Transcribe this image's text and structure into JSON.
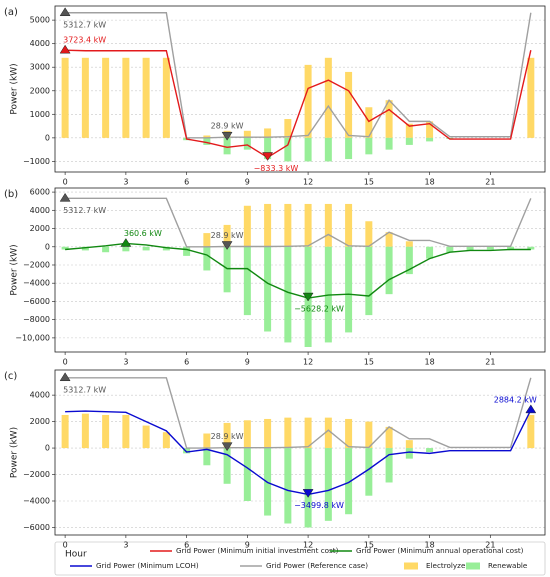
{
  "chart_data": [
    {
      "type": "combo",
      "panel_label": "(a)",
      "ylabel": "Power (kW)",
      "x": [
        0,
        1,
        2,
        3,
        4,
        5,
        6,
        7,
        8,
        9,
        10,
        11,
        12,
        13,
        14,
        15,
        16,
        17,
        18,
        19,
        20,
        21,
        22,
        23
      ],
      "xlim": [
        -0.5,
        23.7
      ],
      "xticks": [
        0,
        3,
        6,
        9,
        12,
        15,
        18,
        21
      ],
      "ylim": [
        -1450,
        5600
      ],
      "yticks": [
        {
          "value": -1000,
          "label": "−1000"
        },
        0,
        1000,
        2000,
        3000,
        4000,
        5000
      ],
      "grid": true,
      "series": [
        {
          "name": "Electrolyzer",
          "kind": "bar",
          "color": "#ffd966",
          "values": [
            3400,
            3400,
            3400,
            3400,
            3400,
            3400,
            0,
            100,
            300,
            300,
            400,
            800,
            3100,
            3400,
            2800,
            1300,
            1600,
            600,
            700,
            0,
            0,
            0,
            0,
            3400
          ]
        },
        {
          "name": "Renewable",
          "kind": "bar",
          "color": "#98ee98",
          "values": [
            0,
            0,
            0,
            0,
            0,
            0,
            -100,
            -300,
            -700,
            -500,
            -900,
            -1000,
            -1000,
            -1000,
            -900,
            -700,
            -500,
            -300,
            -150,
            -50,
            0,
            0,
            0,
            0
          ]
        },
        {
          "name": "Grid Power (Reference case)",
          "kind": "line",
          "color": "#a0a0a0",
          "values": [
            5312.7,
            5312.7,
            5312.7,
            5312.7,
            5312.7,
            5312.7,
            0,
            0,
            28.9,
            30,
            30,
            50,
            100,
            1350,
            100,
            50,
            1600,
            700,
            700,
            50,
            50,
            50,
            50,
            5312.7
          ]
        },
        {
          "name": "Grid Power (Minimum initial investment cost)",
          "kind": "line",
          "color": "#e31a1c",
          "values": [
            3723.4,
            3700,
            3700,
            3700,
            3700,
            3700,
            -50,
            -200,
            -400,
            -300,
            -833.3,
            -300,
            2100,
            2450,
            2000,
            700,
            1200,
            500,
            600,
            -50,
            -50,
            -50,
            -50,
            3723.4
          ]
        }
      ],
      "annotations": [
        {
          "text": "5312.7  kW",
          "x": 0,
          "y": 5312.7,
          "marker": "^",
          "color": "#555555"
        },
        {
          "text": "3723.4  kW",
          "x": 0,
          "y": 3723.4,
          "marker": "^",
          "color": "#e31a1c"
        },
        {
          "text": "28.9  kW",
          "x": 8,
          "y": 28.9,
          "marker": "v",
          "color": "#555555"
        },
        {
          "text": "−833.3  kW",
          "x": 10,
          "y": -833.3,
          "marker": "v",
          "color": "#e31a1c"
        }
      ]
    },
    {
      "type": "combo",
      "panel_label": "(b)",
      "ylabel": "Power (kW)",
      "x": [
        0,
        1,
        2,
        3,
        4,
        5,
        6,
        7,
        8,
        9,
        10,
        11,
        12,
        13,
        14,
        15,
        16,
        17,
        18,
        19,
        20,
        21,
        22,
        23
      ],
      "xlim": [
        -0.5,
        23.7
      ],
      "xticks": [
        0,
        3,
        6,
        9,
        12,
        15,
        18,
        21
      ],
      "ylim": [
        -11550,
        6450
      ],
      "yticks": [
        {
          "value": -10000,
          "label": "−10,000"
        },
        {
          "value": -8000,
          "label": "−8000"
        },
        {
          "value": -6000,
          "label": "−6000"
        },
        {
          "value": -4000,
          "label": "−4000"
        },
        {
          "value": -2000,
          "label": "−2000"
        },
        0,
        2000,
        4000,
        6000
      ],
      "grid": true,
      "series": [
        {
          "kind": "bar",
          "color": "#ffd966",
          "values": [
            0,
            0,
            0,
            0,
            0,
            0,
            0,
            1500,
            2400,
            4500,
            4700,
            4700,
            4700,
            4700,
            4700,
            2800,
            1600,
            600,
            0,
            0,
            0,
            0,
            0,
            0
          ]
        },
        {
          "kind": "bar",
          "color": "#98ee98",
          "values": [
            -300,
            -400,
            -600,
            -500,
            -400,
            -400,
            -1000,
            -2600,
            -5000,
            -7500,
            -9300,
            -10500,
            -11000,
            -10500,
            -9400,
            -7500,
            -5200,
            -3000,
            -1300,
            -600,
            -400,
            -300,
            -300,
            -300
          ]
        },
        {
          "kind": "line",
          "color": "#a0a0a0",
          "values": [
            5312.7,
            5312.7,
            5312.7,
            5312.7,
            5312.7,
            5312.7,
            0,
            0,
            28.9,
            30,
            30,
            50,
            100,
            1350,
            100,
            50,
            1600,
            700,
            700,
            50,
            50,
            50,
            50,
            5312.7
          ]
        },
        {
          "name": "Grid Power (Minimum annual operational cost)",
          "kind": "line",
          "color": "#118811",
          "values": [
            -300,
            -100,
            100,
            360.6,
            200,
            -100,
            -300,
            -900,
            -2400,
            -2400,
            -4000,
            -5000,
            -5628.2,
            -5300,
            -5200,
            -5400,
            -3600,
            -2500,
            -1300,
            -600,
            -400,
            -400,
            -300,
            -300
          ]
        }
      ],
      "annotations": [
        {
          "text": "5312.7  kW",
          "x": 0,
          "y": 5312.7,
          "marker": "^",
          "color": "#555555"
        },
        {
          "text": "360.6  kW",
          "x": 3,
          "y": 360.6,
          "marker": "^",
          "color": "#118811"
        },
        {
          "text": "28.9  kW",
          "x": 8,
          "y": 28.9,
          "marker": "v",
          "color": "#555555"
        },
        {
          "text": "−5628.2  kW",
          "x": 12,
          "y": -5628.2,
          "marker": "v",
          "color": "#118811"
        }
      ]
    },
    {
      "type": "combo",
      "panel_label": "(c)",
      "ylabel": "Power (kW)",
      "xlabel": "Hour",
      "x": [
        0,
        1,
        2,
        3,
        4,
        5,
        6,
        7,
        8,
        9,
        10,
        11,
        12,
        13,
        14,
        15,
        16,
        17,
        18,
        19,
        20,
        21,
        22,
        23
      ],
      "xlim": [
        -0.5,
        23.7
      ],
      "xticks": [
        0,
        3,
        6,
        9,
        12,
        15,
        18,
        21
      ],
      "ylim": [
        -6570,
        5900
      ],
      "yticks": [
        {
          "value": -6000,
          "label": "−6000"
        },
        {
          "value": -4000,
          "label": "−4000"
        },
        {
          "value": -2000,
          "label": "−2000"
        },
        0,
        2000,
        4000
      ],
      "grid": true,
      "series": [
        {
          "kind": "bar",
          "color": "#ffd966",
          "values": [
            2500,
            2600,
            2500,
            2500,
            1700,
            1200,
            0,
            1100,
            1900,
            2100,
            2200,
            2300,
            2300,
            2300,
            2200,
            2000,
            1600,
            600,
            0,
            0,
            0,
            0,
            0,
            2500
          ]
        },
        {
          "kind": "bar",
          "color": "#98ee98",
          "values": [
            0,
            0,
            0,
            0,
            0,
            0,
            -400,
            -1300,
            -2700,
            -4000,
            -5100,
            -5700,
            -6000,
            -5500,
            -5000,
            -3600,
            -2600,
            -800,
            -300,
            0,
            0,
            0,
            0,
            0
          ]
        },
        {
          "kind": "line",
          "color": "#a0a0a0",
          "values": [
            5312.7,
            5312.7,
            5312.7,
            5312.7,
            5312.7,
            5312.7,
            0,
            0,
            28.9,
            30,
            30,
            50,
            100,
            1350,
            100,
            50,
            1600,
            700,
            700,
            50,
            50,
            50,
            50,
            5312.7
          ]
        },
        {
          "name": "Grid Power (Minimum LCOH)",
          "kind": "line",
          "color": "#0a0ad0",
          "values": [
            2750,
            2800,
            2750,
            2700,
            2000,
            1300,
            -300,
            -100,
            -500,
            -1500,
            -2600,
            -3200,
            -3499.8,
            -3200,
            -2600,
            -1600,
            -500,
            -300,
            -400,
            -200,
            -200,
            -200,
            -200,
            2884.2
          ]
        }
      ],
      "annotations": [
        {
          "text": "5312.7  kW",
          "x": 0,
          "y": 5312.7,
          "marker": "^",
          "color": "#555555"
        },
        {
          "text": "28.9  kW",
          "x": 8,
          "y": 28.9,
          "marker": "v",
          "color": "#555555"
        },
        {
          "text": "−3499.8  kW",
          "x": 12,
          "y": -3499.8,
          "marker": "v",
          "color": "#0a0ad0"
        },
        {
          "text": "2884.2  kW",
          "x": 23,
          "y": 2884.2,
          "marker": "^",
          "color": "#0a0ad0"
        }
      ]
    }
  ]
}
